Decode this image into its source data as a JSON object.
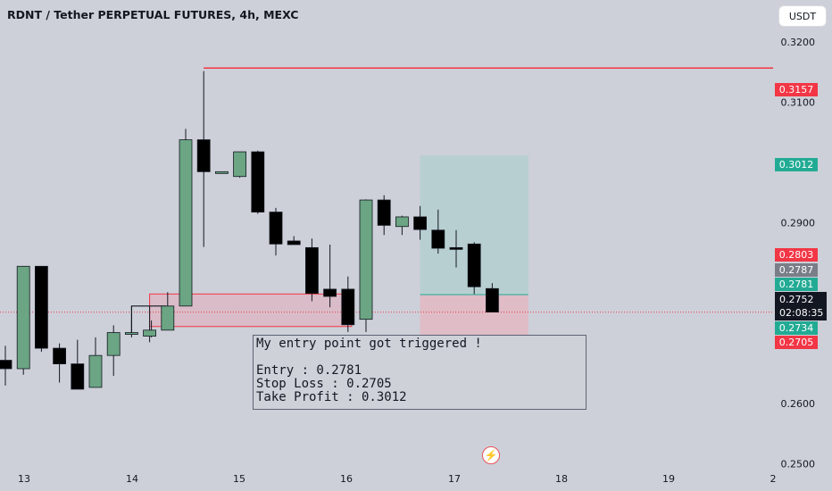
{
  "header": {
    "title": "RDNT / Tether PERPETUAL FUTURES, 4h, MEXC"
  },
  "toolbar": {
    "currency": "USDT"
  },
  "note": {
    "line1": "My entry point got triggered !",
    "line2": "Entry : 0.2781",
    "line3": "Stop Loss : 0.2705",
    "line4": "Take Profit : 0.3012"
  },
  "price_tags": {
    "target": "0.3157",
    "take_profit": "0.3012",
    "t2803": "0.2803",
    "t2787": "0.2787",
    "entry": "0.2781",
    "current": "0.2752",
    "countdown": "02:08:35",
    "t2734": "0.2734",
    "stop_loss": "0.2705"
  },
  "colors": {
    "background": "#cdd0d8",
    "bull": "#6ba583",
    "bear": "#000000",
    "red": "#f23645",
    "green": "#22ab94",
    "gray_tag": "#7a7e88",
    "profit_zone": "#b8cfd1",
    "loss_zone": "#dfbcc6"
  },
  "icons": {
    "flash": "lightning-icon"
  },
  "chart_data": {
    "type": "candlestick",
    "title": "RDNT / Tether PERPETUAL FUTURES, 4h, MEXC",
    "ylim": [
      0.2455,
      0.327
    ],
    "yticks": [
      "0.3200",
      "0.3100",
      "0.2900",
      "0.2600",
      "0.2500"
    ],
    "ytick_values": [
      0.32,
      0.31,
      0.29,
      0.26,
      0.25
    ],
    "xticks": [
      "13",
      "14",
      "15",
      "16",
      "17",
      "18",
      "19",
      "2"
    ],
    "candles": [
      {
        "o": 0.2672,
        "h": 0.2696,
        "l": 0.263,
        "c": 0.2658
      },
      {
        "o": 0.2658,
        "h": 0.2828,
        "l": 0.2648,
        "c": 0.2828
      },
      {
        "o": 0.2828,
        "h": 0.2828,
        "l": 0.2686,
        "c": 0.2692
      },
      {
        "o": 0.2692,
        "h": 0.27,
        "l": 0.2635,
        "c": 0.2666
      },
      {
        "o": 0.2666,
        "h": 0.2706,
        "l": 0.2627,
        "c": 0.2624
      },
      {
        "o": 0.2627,
        "h": 0.271,
        "l": 0.2627,
        "c": 0.268
      },
      {
        "o": 0.268,
        "h": 0.273,
        "l": 0.2646,
        "c": 0.2718
      },
      {
        "o": 0.2718,
        "h": 0.2738,
        "l": 0.271,
        "c": 0.2718
      },
      {
        "o": 0.2712,
        "h": 0.2762,
        "l": 0.2702,
        "c": 0.2722
      },
      {
        "o": 0.2722,
        "h": 0.2785,
        "l": 0.2722,
        "c": 0.2762
      },
      {
        "o": 0.2762,
        "h": 0.3056,
        "l": 0.2762,
        "c": 0.3038
      },
      {
        "o": 0.3038,
        "h": 0.3152,
        "l": 0.286,
        "c": 0.2985
      },
      {
        "o": 0.2985,
        "h": 0.2985,
        "l": 0.2985,
        "c": 0.2985
      },
      {
        "o": 0.2977,
        "h": 0.3018,
        "l": 0.2975,
        "c": 0.3018
      },
      {
        "o": 0.3018,
        "h": 0.302,
        "l": 0.2915,
        "c": 0.2918
      },
      {
        "o": 0.2918,
        "h": 0.2925,
        "l": 0.2846,
        "c": 0.2865
      },
      {
        "o": 0.287,
        "h": 0.2878,
        "l": 0.2864,
        "c": 0.2864
      },
      {
        "o": 0.2859,
        "h": 0.2874,
        "l": 0.277,
        "c": 0.2783
      },
      {
        "o": 0.279,
        "h": 0.2864,
        "l": 0.276,
        "c": 0.2778
      },
      {
        "o": 0.279,
        "h": 0.2811,
        "l": 0.2719,
        "c": 0.2731
      },
      {
        "o": 0.274,
        "h": 0.2939,
        "l": 0.2719,
        "c": 0.2938
      },
      {
        "o": 0.2938,
        "h": 0.2946,
        "l": 0.288,
        "c": 0.2896
      },
      {
        "o": 0.2894,
        "h": 0.2912,
        "l": 0.288,
        "c": 0.291
      },
      {
        "o": 0.291,
        "h": 0.2928,
        "l": 0.2872,
        "c": 0.2889
      },
      {
        "o": 0.2888,
        "h": 0.2922,
        "l": 0.2849,
        "c": 0.2858
      },
      {
        "o": 0.2859,
        "h": 0.2888,
        "l": 0.2826,
        "c": 0.2857
      },
      {
        "o": 0.2865,
        "h": 0.2868,
        "l": 0.2782,
        "c": 0.2794
      },
      {
        "o": 0.2791,
        "h": 0.28,
        "l": 0.2752,
        "c": 0.2752
      }
    ],
    "lines": [
      {
        "name": "target",
        "y": 0.3157,
        "x_from": 11
      },
      {
        "name": "current",
        "y": 0.2752
      }
    ],
    "zones": [
      {
        "kind": "profit",
        "from": 0.2781,
        "to": 0.3012,
        "x_from": 23.0,
        "x_to": 29.0
      },
      {
        "kind": "loss",
        "from": 0.2705,
        "to": 0.2781,
        "x_from": 23.0,
        "x_to": 29.0
      },
      {
        "kind": "demand",
        "from": 0.2728,
        "to": 0.2782,
        "x_from": 8.0,
        "x_to": 19.2
      }
    ]
  }
}
